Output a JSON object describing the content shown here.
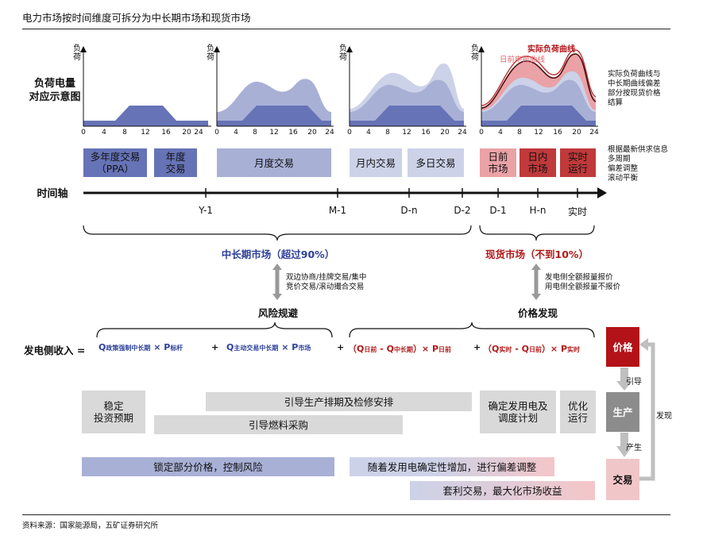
{
  "title": "电力市场按时间维度可拆分为中长期市场和现货市场",
  "charts": {
    "row_label": "负荷电量\n对应示意图",
    "y_axis_label": "负荷",
    "x_ticks": [
      "0",
      "4",
      "8",
      "12",
      "16",
      "20",
      "24"
    ],
    "actual_curve_label": "实际负荷曲线",
    "dayahead_curve_label": "日前申报曲线",
    "right_note": "实际负荷曲线与\n中长期曲线偏差\n部分按现货价格\n结算"
  },
  "products": {
    "multi_year": "多年度交易\n（PPA）",
    "annual": "年度\n交易",
    "monthly": "月度交易",
    "intra_month": "月内交易",
    "multi_day": "多日交易",
    "day_ahead": "日前\n市场",
    "intraday": "日内\n市场",
    "realtime": "实时\n运行",
    "right_note": "根据最新供求信息\n多周期\n偏差调整\n滚动平衡"
  },
  "timeline": {
    "label": "时间轴",
    "points": [
      "Y-1",
      "M-1",
      "D-n",
      "D-2",
      "D-1",
      "H-n",
      "实时"
    ]
  },
  "markets": {
    "mid_long": "中长期市场（超过90%）",
    "spot": "现货市场（不到10%）",
    "mid_long_desc": "双边协商/挂牌交易/集中\n竞价交易/滚动撮合交易",
    "spot_desc": "发电侧全额报量报价\n用电侧全额报量不报价",
    "risk": "风险规避",
    "price_discovery": "价格发现"
  },
  "formula": {
    "label": "发电侧收入 =",
    "t1_q": "Q",
    "t1_sub": "政策强制中长期",
    "t1_x": " × P",
    "t1_psub": "标杆",
    "plus1": "+",
    "t2_q": "Q",
    "t2_sub": "主动交易中长期",
    "t2_x": " × P",
    "t2_psub": "市场",
    "plus2": "+",
    "t3_a": "（Q",
    "t3_s1": "日前",
    "t3_b": " - Q",
    "t3_s2": "中长期",
    "t3_c": "）× P",
    "t3_s3": "日前",
    "plus3": "+",
    "t4_a": "（Q",
    "t4_s1": "实时",
    "t4_b": " - Q",
    "t4_s2": "日前",
    "t4_c": "）× P",
    "t4_s3": "实时"
  },
  "effects": {
    "stable": "稳定\n投资预期",
    "guide_maint": "引导生产排期及检修安排",
    "guide_fuel": "引导燃料采购",
    "dispatch": "确定发用电及\n调度计划",
    "optimize": "优化\n运行",
    "lock_price": "锁定部分价格，控制风险",
    "deviation": "随着发用电确定性增加，进行偏差调整",
    "arbitrage": "套利交易，最大化市场收益"
  },
  "cycle": {
    "price": "价格",
    "production": "生产",
    "trade": "交易",
    "guide": "引导",
    "produce": "产生",
    "discover": "发现"
  },
  "source": "资料来源：国家能源局，五矿证券研究所",
  "colors": {
    "blue_dark": "#6673b6",
    "blue_mid": "#a8b0d6",
    "blue_light": "#ccd2e8",
    "red_dark": "#c0393b",
    "red_light": "#eaa2a6",
    "red_box": "#b31218",
    "grey_box": "#d9d9d9",
    "grey_dark": "#8c8c8c"
  }
}
